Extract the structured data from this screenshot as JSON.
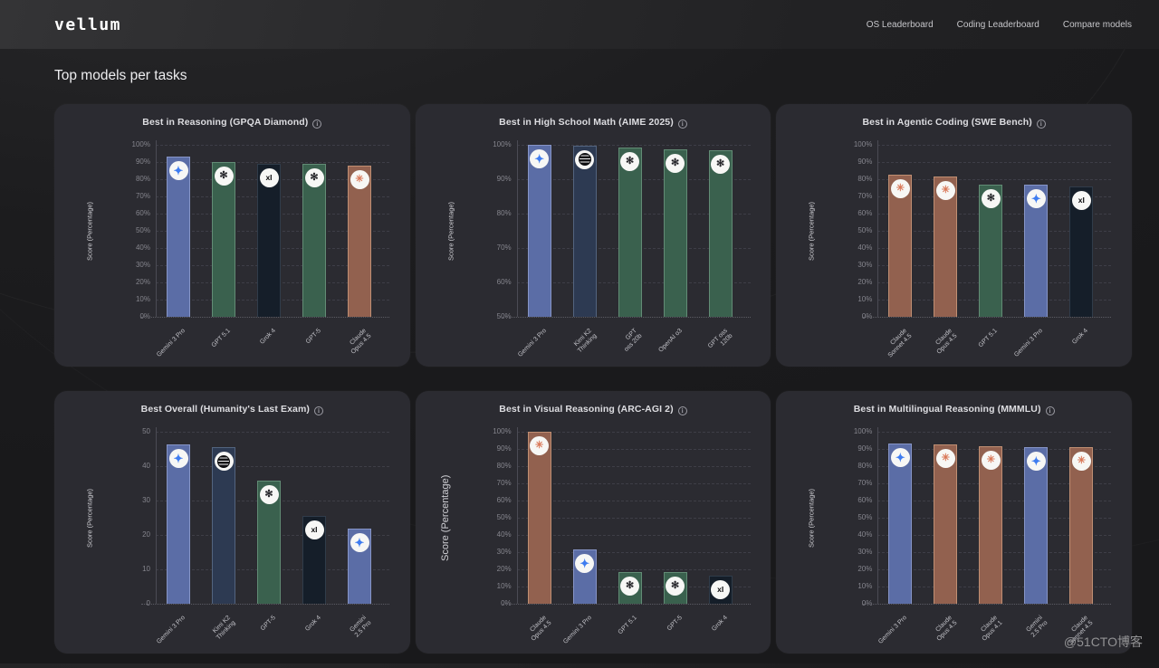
{
  "brand": {
    "logo": "vellum"
  },
  "nav": {
    "items": [
      {
        "label": "OS Leaderboard"
      },
      {
        "label": "Coding Leaderboard"
      },
      {
        "label": "Compare models"
      }
    ]
  },
  "page": {
    "title": "Top models per tasks",
    "watermark": "@51CTO博客"
  },
  "icons": {
    "info": "i",
    "gemini": {
      "name": "gemini-logo-icon",
      "glyph": "✦",
      "color": "#3e7cf0"
    },
    "openai": {
      "name": "openai-logo-icon",
      "glyph": "✻",
      "color": "#26262a"
    },
    "claude": {
      "name": "claude-logo-icon",
      "glyph": "✳",
      "color": "#d97757"
    },
    "xai": {
      "name": "xai-logo-icon",
      "glyph": "xI",
      "color": "#0b0b0d"
    },
    "kimi": {
      "name": "kimi-logo-icon",
      "glyph": "",
      "color": "#101012"
    }
  },
  "colors": {
    "gemini": {
      "fill": "#5b6da6",
      "border": "#8795c7"
    },
    "openai": {
      "fill": "#3a614e",
      "border": "#628c75"
    },
    "xai": {
      "fill": "#151e29",
      "border": "#303c4a"
    },
    "claude": {
      "fill": "#92614f",
      "border": "#c08f73"
    },
    "kimi": {
      "fill": "#2d3a52",
      "border": "#53647f"
    }
  },
  "chart_data": [
    {
      "type": "bar",
      "title": "Best in Reasoning (GPQA Diamond)",
      "ylabel": "Score (Percentage)",
      "big_ylabel": false,
      "ylim": [
        0,
        100
      ],
      "yticks": [
        "100%",
        "90%",
        "80%",
        "70%",
        "60%",
        "50%",
        "40%",
        "30%",
        "20%",
        "10%",
        "0%"
      ],
      "categories": [
        "Gemini 3 Pro",
        "GPT 5.1",
        "Grok 4",
        "GPT-5",
        "Claude\nOpus 4.5"
      ],
      "values": [
        93,
        89.8,
        89,
        88.7,
        88
      ],
      "brands": [
        "gemini",
        "openai",
        "xai",
        "openai",
        "claude"
      ]
    },
    {
      "type": "bar",
      "title": "Best in High School Math (AIME 2025)",
      "ylabel": "Score (Percentage)",
      "big_ylabel": false,
      "ylim": [
        50,
        100
      ],
      "yticks": [
        "100%",
        "90%",
        "80%",
        "70%",
        "60%",
        "50%"
      ],
      "categories": [
        "Gemini 3 Pro",
        "Kimi K2\nThinking",
        "GPT\noss 20b",
        "OpenAI o3",
        "GPT oss\n120b"
      ],
      "values": [
        100,
        99.8,
        99.2,
        98.8,
        98.4
      ],
      "brands": [
        "gemini",
        "kimi",
        "openai",
        "openai",
        "openai"
      ]
    },
    {
      "type": "bar",
      "title": "Best in Agentic Coding (SWE Bench)",
      "ylabel": "Score (Percentage)",
      "big_ylabel": false,
      "ylim": [
        0,
        100
      ],
      "yticks": [
        "100%",
        "90%",
        "80%",
        "70%",
        "60%",
        "50%",
        "40%",
        "30%",
        "20%",
        "10%",
        "0%"
      ],
      "categories": [
        "Claude\nSonnet 4.5",
        "Claude\nOpus 4.5",
        "GPT 5.1",
        "Gemini 3 Pro",
        "Grok 4"
      ],
      "values": [
        82.5,
        81.5,
        76.8,
        76.6,
        75.8
      ],
      "brands": [
        "claude",
        "claude",
        "openai",
        "gemini",
        "xai"
      ]
    },
    {
      "type": "bar",
      "title": "Best Overall (Humanity's Last Exam)",
      "ylabel": "Score (Percentage)",
      "big_ylabel": false,
      "ylim": [
        0,
        50
      ],
      "yticks": [
        "50",
        "40",
        "30",
        "20",
        "10",
        "0"
      ],
      "categories": [
        "Gemini 3 Pro",
        "Kimi K2\nThinking",
        "GPT-5",
        "Grok 4",
        "Gemini\n2.5 Pro"
      ],
      "values": [
        46.3,
        45.5,
        35.7,
        25.6,
        21.9
      ],
      "brands": [
        "gemini",
        "kimi",
        "openai",
        "xai",
        "gemini"
      ]
    },
    {
      "type": "bar",
      "title": "Best in Visual Reasoning (ARC-AGI 2)",
      "ylabel": "Score (Percentage)",
      "big_ylabel": true,
      "ylim": [
        0,
        100
      ],
      "yticks": [
        "100%",
        "90%",
        "80%",
        "70%",
        "60%",
        "50%",
        "40%",
        "30%",
        "20%",
        "10%",
        "0%"
      ],
      "categories": [
        "Claude\nOpus 4.5",
        "Gemini 3 Pro",
        "GPT 5.1",
        "GPT-5",
        "Grok 4"
      ],
      "values": [
        100,
        31.6,
        18.3,
        18.3,
        16.2
      ],
      "brands": [
        "claude",
        "gemini",
        "openai",
        "openai",
        "xai"
      ]
    },
    {
      "type": "bar",
      "title": "Best in Multilingual Reasoning (MMMLU)",
      "ylabel": "Score (Percentage)",
      "big_ylabel": false,
      "ylim": [
        0,
        100
      ],
      "yticks": [
        "100%",
        "90%",
        "80%",
        "70%",
        "60%",
        "50%",
        "40%",
        "30%",
        "20%",
        "10%",
        "0%"
      ],
      "categories": [
        "Gemini 3 Pro",
        "Claude\nOpus 4.5",
        "Claude\nOpus 4.1",
        "Gemini\n2.5 Pro",
        "Claude\nSonnet 4.5"
      ],
      "values": [
        93.4,
        92.4,
        91.5,
        91,
        91
      ],
      "brands": [
        "gemini",
        "claude",
        "claude",
        "gemini",
        "claude"
      ]
    }
  ]
}
